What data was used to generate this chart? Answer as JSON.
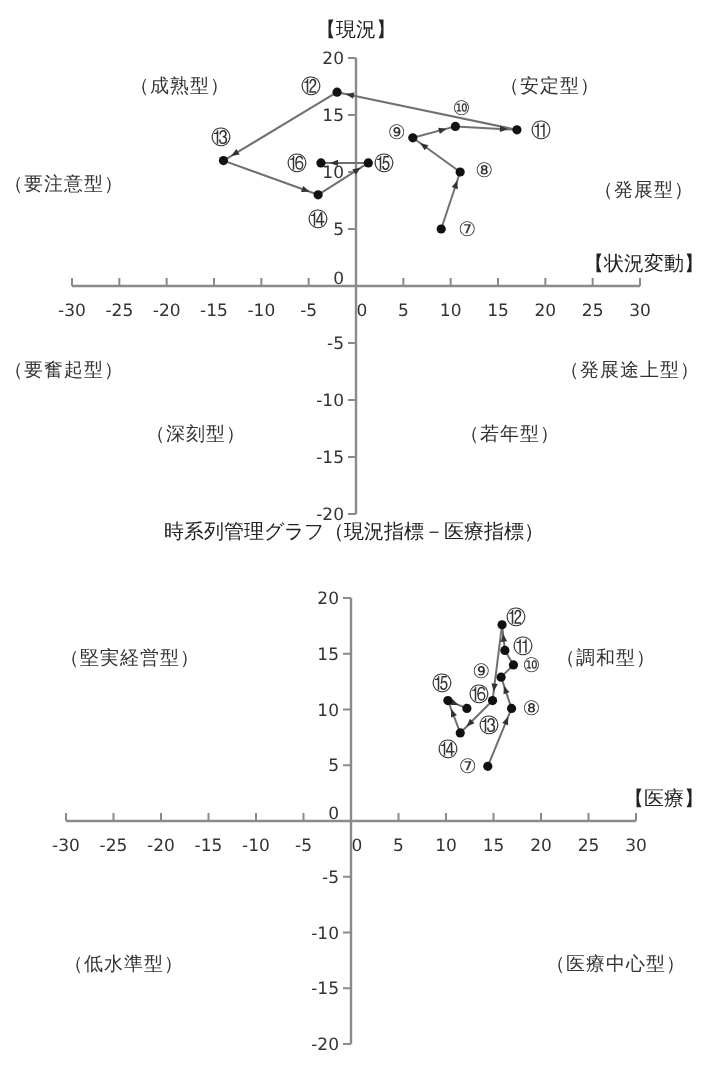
{
  "chart_data": [
    {
      "type": "line",
      "xlabel": "【状況変動】",
      "ylabel": "【現況】",
      "marker": "circle",
      "grid": false,
      "xlim": [
        -30,
        30
      ],
      "ylim": [
        -20,
        20
      ],
      "xticks": [
        -30,
        -25,
        -20,
        -15,
        -10,
        -5,
        0,
        5,
        10,
        15,
        20,
        25,
        30
      ],
      "yticks": [
        -20,
        -15,
        -10,
        -5,
        0,
        5,
        10,
        15,
        20
      ],
      "series": [
        {
          "color": "#707070",
          "x": [
            9,
            11,
            6,
            10.5,
            17,
            -2,
            -14,
            -4,
            1.3,
            -3.7
          ],
          "values": [
            5,
            10,
            13,
            14,
            13.7,
            17,
            11,
            8,
            10.8,
            10.8
          ]
        }
      ],
      "annotations": [
        {
          "text": "⑦",
          "x": 9,
          "y": 5
        },
        {
          "text": "⑧",
          "x": 11,
          "y": 10
        },
        {
          "text": "⑨",
          "x": 6,
          "y": 13
        },
        {
          "text": "⑩",
          "x": 10.5,
          "y": 14
        },
        {
          "text": "⑪",
          "x": 17,
          "y": 13.7
        },
        {
          "text": "⑫",
          "x": -2,
          "y": 17
        },
        {
          "text": "⑬",
          "x": -14,
          "y": 11
        },
        {
          "text": "⑭",
          "x": -4,
          "y": 8
        },
        {
          "text": "⑮",
          "x": 1.3,
          "y": 10.8
        },
        {
          "text": "⑯",
          "x": -3.7,
          "y": 10.8
        },
        "（成熟型）",
        "（安定型）",
        "（要注意型）",
        "（発展型）",
        "（要奮起型）",
        "（発展途上型）",
        "（深刻型）",
        "（若年型）"
      ]
    },
    {
      "type": "line",
      "title": "時系列管理グラフ（現況指標－医療指標）",
      "xlabel": "【医療】",
      "marker": "circle",
      "grid": false,
      "xlim": [
        -30,
        30
      ],
      "ylim": [
        -20,
        20
      ],
      "xticks": [
        -30,
        -25,
        -20,
        -15,
        -10,
        -5,
        0,
        5,
        10,
        15,
        20,
        25,
        30
      ],
      "yticks": [
        -20,
        -15,
        -10,
        -5,
        0,
        5,
        10,
        15,
        20
      ],
      "series": [
        {
          "color": "#707070",
          "x": [
            14.4,
            16.9,
            15.8,
            17.1,
            16.2,
            15.9,
            14.9,
            11.5,
            10.2,
            12.2
          ],
          "values": [
            4.9,
            10.1,
            12.9,
            14,
            15.3,
            17.6,
            10.8,
            7.9,
            10.8,
            10.1
          ]
        }
      ],
      "annotations": [
        {
          "text": "⑦",
          "x": 14.4,
          "y": 4.9
        },
        {
          "text": "⑧",
          "x": 16.9,
          "y": 10.1
        },
        {
          "text": "⑨",
          "x": 15.8,
          "y": 12.9
        },
        {
          "text": "⑩",
          "x": 17.1,
          "y": 14
        },
        {
          "text": "⑪",
          "x": 16.2,
          "y": 15.3
        },
        {
          "text": "⑫",
          "x": 15.9,
          "y": 17.6
        },
        {
          "text": "⑬",
          "x": 14.9,
          "y": 10.8
        },
        {
          "text": "⑭",
          "x": 11.5,
          "y": 7.9
        },
        {
          "text": "⑮",
          "x": 10.2,
          "y": 10.8
        },
        {
          "text": "⑯",
          "x": 12.2,
          "y": 10.1
        },
        "（堅実経営型）",
        "（調和型）",
        "（低水準型）",
        "（医療中心型）"
      ]
    }
  ]
}
